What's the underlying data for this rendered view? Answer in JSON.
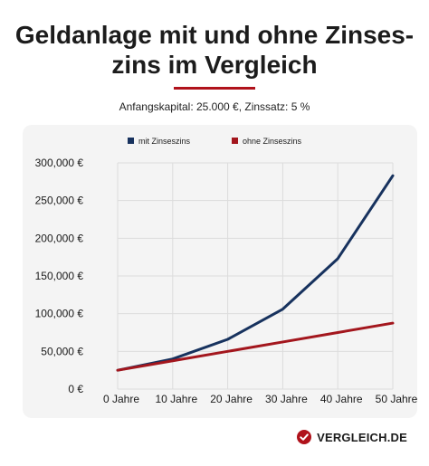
{
  "title_lines": [
    "Geldanlage mit und ohne Zinses-",
    "zins im Vergleich"
  ],
  "subtitle": "Anfangskapital: 25.000 €, Zinssatz: 5 %",
  "brand": {
    "text": "VERGLEICH.DE",
    "icon": "check-circle-icon",
    "color": "#b0121b"
  },
  "colors": {
    "accent": "#b0121b",
    "series_compound": "#17325e",
    "series_simple": "#a3161d",
    "grid": "#dcdcdc"
  },
  "chart_data": {
    "type": "line",
    "x": [
      0,
      10,
      20,
      30,
      40,
      50
    ],
    "x_tick_labels": [
      "0 Jahre",
      "10 Jahre",
      "20 Jahre",
      "30 Jahre",
      "40 Jahre",
      "50 Jahre"
    ],
    "y_tick_labels": [
      "0 €",
      "50,000 €",
      "100,000 €",
      "150,000 €",
      "200,000 €",
      "250,000 €",
      "300,000 €"
    ],
    "y_ticks": [
      0,
      50000,
      100000,
      150000,
      200000,
      250000,
      300000
    ],
    "ylim": [
      0,
      300000
    ],
    "grid": true,
    "legend_position": "top",
    "series": [
      {
        "name": "mit Zinseszins",
        "values": [
          25000,
          40000,
          66000,
          106000,
          173000,
          283000
        ]
      },
      {
        "name": "ohne Zinseszins",
        "values": [
          25000,
          37500,
          50000,
          62500,
          75000,
          87500
        ]
      }
    ]
  }
}
